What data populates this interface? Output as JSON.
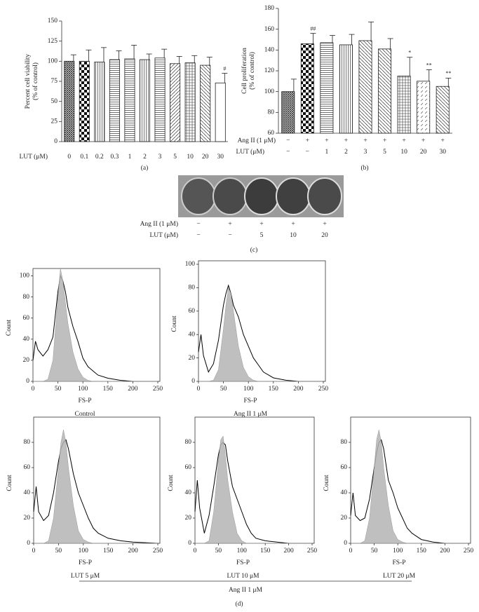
{
  "chart_data": [
    {
      "type": "bar",
      "ylabel": [
        "Percent cell viability",
        "(% of control)"
      ],
      "category_label": "LUT (μM)",
      "categories": [
        "0",
        "0.1",
        "0.2",
        "0.3",
        "1",
        "2",
        "3",
        "5",
        "10",
        "20",
        "30"
      ],
      "values": [
        100,
        100,
        99,
        102,
        103,
        102,
        104,
        97,
        98,
        95,
        73
      ],
      "errors": [
        8,
        14,
        18,
        11,
        17,
        7,
        11,
        9,
        9,
        10,
        12
      ],
      "annotations": [
        null,
        null,
        null,
        null,
        null,
        null,
        null,
        null,
        null,
        null,
        "#"
      ],
      "ylim": [
        0,
        150
      ],
      "yticks": [
        0,
        25,
        50,
        75,
        100,
        125,
        150
      ],
      "caption": "(a)"
    },
    {
      "type": "bar",
      "ylabel": [
        "Cell proliferation",
        "(% of control)"
      ],
      "category_label": "LUT (μM)",
      "categories": [
        "−",
        "−",
        "1",
        "2",
        "3",
        "5",
        "10",
        "20",
        "30"
      ],
      "condition_row": {
        "label": "Ang II (1 μM)",
        "values": [
          "−",
          "+",
          "+",
          "+",
          "+",
          "+",
          "+",
          "+",
          "+"
        ]
      },
      "values": [
        100,
        146,
        147,
        145,
        149,
        141,
        115,
        110,
        105
      ],
      "errors": [
        12,
        10,
        7,
        10,
        18,
        10,
        18,
        11,
        8
      ],
      "annotations": [
        null,
        "##",
        null,
        null,
        null,
        null,
        "*",
        "**",
        "**"
      ],
      "ylim": [
        60,
        180
      ],
      "yticks": [
        60,
        80,
        100,
        120,
        140,
        160,
        180
      ],
      "caption": "(b)"
    },
    {
      "type": "histogram-overlay",
      "ylabel": "Count",
      "xlabel": "FS-P",
      "caption": "Control",
      "x": [
        0,
        5,
        10,
        20,
        30,
        40,
        50,
        55,
        60,
        65,
        70,
        80,
        90,
        100,
        110,
        120,
        130,
        150,
        175,
        200,
        250
      ],
      "series": [
        {
          "style": "line",
          "color": "#000000",
          "values": [
            20,
            38,
            30,
            24,
            30,
            42,
            85,
            100,
            95,
            85,
            70,
            52,
            38,
            22,
            14,
            10,
            6,
            3,
            1,
            0,
            0
          ]
        },
        {
          "style": "area",
          "color": "#b4b4b4",
          "values": [
            0,
            0,
            0,
            0,
            2,
            20,
            80,
            107,
            95,
            75,
            55,
            28,
            12,
            4,
            1,
            0,
            0,
            0,
            0,
            0,
            0
          ]
        }
      ],
      "xlim": [
        0,
        250
      ],
      "xticks": [
        0,
        50,
        100,
        150,
        200,
        250
      ],
      "ylim": [
        0,
        107
      ],
      "yticks": [
        0,
        20,
        40,
        60,
        80,
        100
      ]
    },
    {
      "type": "histogram-overlay",
      "ylabel": "Count",
      "xlabel": "FS-P",
      "caption": "Ang II 1 μM",
      "x": [
        0,
        5,
        10,
        20,
        30,
        40,
        50,
        55,
        60,
        65,
        70,
        80,
        90,
        100,
        110,
        120,
        130,
        150,
        175,
        200,
        250
      ],
      "series": [
        {
          "style": "line",
          "color": "#000000",
          "values": [
            25,
            40,
            22,
            8,
            15,
            35,
            65,
            75,
            82,
            75,
            65,
            55,
            40,
            30,
            20,
            14,
            8,
            3,
            1,
            0,
            0
          ]
        },
        {
          "style": "area",
          "color": "#b4b4b4",
          "values": [
            0,
            0,
            0,
            0,
            1,
            10,
            45,
            65,
            80,
            75,
            60,
            30,
            12,
            4,
            1,
            0,
            0,
            0,
            0,
            0,
            0
          ]
        }
      ],
      "xlim": [
        0,
        250
      ],
      "xticks": [
        0,
        50,
        100,
        150,
        200,
        250
      ],
      "ylim": [
        0,
        103
      ],
      "yticks": [
        0,
        20,
        40,
        60,
        80,
        100
      ]
    },
    {
      "type": "histogram-overlay",
      "ylabel": "Count",
      "xlabel": "FS-P",
      "caption": "LUT 5 μM",
      "x": [
        0,
        5,
        10,
        20,
        30,
        40,
        50,
        55,
        60,
        65,
        70,
        80,
        90,
        100,
        110,
        120,
        130,
        150,
        175,
        200,
        250
      ],
      "series": [
        {
          "style": "line",
          "color": "#000000",
          "values": [
            25,
            45,
            25,
            18,
            22,
            40,
            65,
            75,
            80,
            82,
            75,
            55,
            40,
            30,
            20,
            12,
            8,
            4,
            2,
            1,
            0
          ]
        },
        {
          "style": "area",
          "color": "#b4b4b4",
          "values": [
            0,
            0,
            0,
            0,
            2,
            20,
            60,
            80,
            90,
            80,
            60,
            30,
            10,
            3,
            1,
            0,
            0,
            0,
            0,
            0,
            0
          ]
        }
      ],
      "xlim": [
        0,
        250
      ],
      "xticks": [
        0,
        50,
        100,
        150,
        200,
        250
      ],
      "ylim": [
        0,
        100
      ],
      "yticks": [
        0,
        20,
        40,
        60,
        80
      ]
    },
    {
      "type": "histogram-overlay",
      "ylabel": "Count",
      "xlabel": "FS-P",
      "caption": "LUT 10 μM",
      "x": [
        0,
        5,
        10,
        20,
        30,
        40,
        50,
        55,
        60,
        65,
        70,
        80,
        90,
        100,
        110,
        120,
        130,
        150,
        175,
        200,
        250
      ],
      "series": [
        {
          "style": "line",
          "color": "#000000",
          "values": [
            25,
            50,
            28,
            8,
            22,
            45,
            70,
            78,
            80,
            78,
            65,
            45,
            35,
            25,
            15,
            8,
            4,
            2,
            1,
            0,
            0
          ]
        },
        {
          "style": "area",
          "color": "#b4b4b4",
          "values": [
            0,
            0,
            0,
            0,
            2,
            25,
            65,
            82,
            85,
            70,
            50,
            25,
            8,
            2,
            0,
            0,
            0,
            0,
            0,
            0,
            0
          ]
        }
      ],
      "xlim": [
        0,
        250
      ],
      "xticks": [
        0,
        50,
        100,
        150,
        200,
        250
      ],
      "ylim": [
        0,
        100
      ],
      "yticks": [
        0,
        20,
        40,
        60,
        80
      ]
    },
    {
      "type": "histogram-overlay",
      "ylabel": "Count",
      "xlabel": "FS-P",
      "caption": "LUT 20 μM",
      "x": [
        0,
        5,
        10,
        20,
        30,
        40,
        50,
        55,
        60,
        65,
        70,
        80,
        90,
        100,
        110,
        120,
        130,
        150,
        175,
        200,
        250
      ],
      "series": [
        {
          "style": "line",
          "color": "#000000",
          "values": [
            22,
            40,
            22,
            18,
            20,
            35,
            60,
            72,
            80,
            82,
            75,
            50,
            40,
            28,
            20,
            12,
            8,
            3,
            1,
            0,
            0
          ]
        },
        {
          "style": "area",
          "color": "#b4b4b4",
          "values": [
            0,
            0,
            0,
            0,
            2,
            20,
            60,
            82,
            90,
            80,
            60,
            30,
            10,
            3,
            1,
            0,
            0,
            0,
            0,
            0,
            0
          ]
        }
      ],
      "xlim": [
        0,
        250
      ],
      "xticks": [
        0,
        50,
        100,
        150,
        200,
        250
      ],
      "ylim": [
        0,
        100
      ],
      "yticks": [
        0,
        20,
        40,
        60,
        80
      ]
    }
  ],
  "panel_c": {
    "rows": [
      {
        "label": "Ang II (1 μM)",
        "values": [
          "−",
          "+",
          "+",
          "+",
          "+"
        ]
      },
      {
        "label": "LUT (μM)",
        "values": [
          "−",
          "−",
          "5",
          "10",
          "20"
        ]
      }
    ],
    "caption": "(c)"
  },
  "panel_d": {
    "group_label": "Ang II 1 μM",
    "caption": "(d)"
  }
}
